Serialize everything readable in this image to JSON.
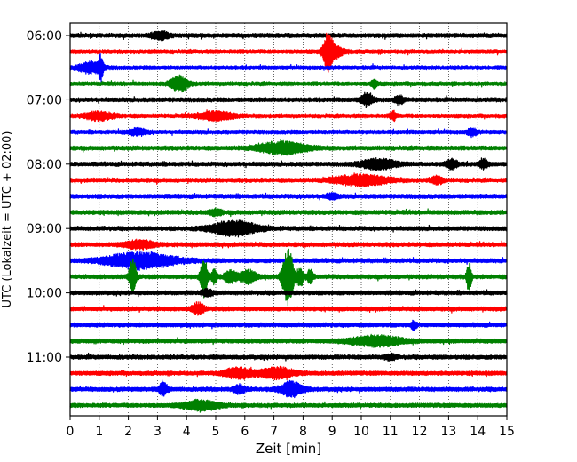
{
  "chart_data": {
    "type": "line",
    "title": "",
    "xlabel": "Zeit  [min]",
    "ylabel": "UTC (Lokalzeit = UTC + 02:00)",
    "xlim": [
      0,
      15
    ],
    "x_ticks": [
      0,
      1,
      2,
      3,
      4,
      5,
      6,
      7,
      8,
      9,
      10,
      11,
      12,
      13,
      14,
      15
    ],
    "y_tick_labels": [
      "06:00",
      "07:00",
      "08:00",
      "09:00",
      "10:00",
      "11:00"
    ],
    "grid": "vertical dotted",
    "legend": "none",
    "colors": [
      "#000000",
      "#ff0000",
      "#0000ff",
      "#008000"
    ],
    "traces": [
      {
        "start": "06:00",
        "color": "#000000",
        "events": [
          {
            "t": 3.1,
            "amp": 0.18,
            "dur": 0.3
          }
        ]
      },
      {
        "start": "06:15",
        "color": "#ff0000",
        "events": [
          {
            "t": 8.85,
            "amp": 0.9,
            "dur": 0.15
          },
          {
            "t": 9.1,
            "amp": 0.25,
            "dur": 0.3
          }
        ]
      },
      {
        "start": "06:30",
        "color": "#0000ff",
        "events": [
          {
            "t": 0.7,
            "amp": 0.25,
            "dur": 0.4
          },
          {
            "t": 1.05,
            "amp": 0.6,
            "dur": 0.08
          }
        ]
      },
      {
        "start": "06:45",
        "color": "#008000",
        "events": [
          {
            "t": 3.75,
            "amp": 0.35,
            "dur": 0.3
          },
          {
            "t": 10.45,
            "amp": 0.2,
            "dur": 0.1
          }
        ]
      },
      {
        "start": "07:00",
        "color": "#000000",
        "events": [
          {
            "t": 10.2,
            "amp": 0.3,
            "dur": 0.2
          },
          {
            "t": 11.3,
            "amp": 0.2,
            "dur": 0.15
          }
        ]
      },
      {
        "start": "07:15",
        "color": "#ff0000",
        "events": [
          {
            "t": 1.0,
            "amp": 0.18,
            "dur": 0.5
          },
          {
            "t": 5.0,
            "amp": 0.2,
            "dur": 0.6
          },
          {
            "t": 11.1,
            "amp": 0.22,
            "dur": 0.1
          }
        ]
      },
      {
        "start": "07:30",
        "color": "#0000ff",
        "events": [
          {
            "t": 2.3,
            "amp": 0.15,
            "dur": 0.3
          },
          {
            "t": 13.8,
            "amp": 0.18,
            "dur": 0.15
          }
        ]
      },
      {
        "start": "07:45",
        "color": "#008000",
        "events": [
          {
            "t": 7.3,
            "amp": 0.3,
            "dur": 0.8
          }
        ]
      },
      {
        "start": "08:00",
        "color": "#000000",
        "events": [
          {
            "t": 10.6,
            "amp": 0.25,
            "dur": 0.6
          },
          {
            "t": 13.1,
            "amp": 0.22,
            "dur": 0.2
          },
          {
            "t": 14.2,
            "amp": 0.2,
            "dur": 0.15
          }
        ]
      },
      {
        "start": "08:15",
        "color": "#ff0000",
        "events": [
          {
            "t": 10.0,
            "amp": 0.25,
            "dur": 0.9
          },
          {
            "t": 12.6,
            "amp": 0.18,
            "dur": 0.2
          }
        ]
      },
      {
        "start": "08:30",
        "color": "#0000ff",
        "events": [
          {
            "t": 9.0,
            "amp": 0.12,
            "dur": 0.2
          }
        ]
      },
      {
        "start": "08:45",
        "color": "#008000",
        "events": [
          {
            "t": 5.0,
            "amp": 0.15,
            "dur": 0.2
          }
        ]
      },
      {
        "start": "09:00",
        "color": "#000000",
        "events": [
          {
            "t": 5.6,
            "amp": 0.35,
            "dur": 0.8
          }
        ]
      },
      {
        "start": "09:15",
        "color": "#ff0000",
        "events": [
          {
            "t": 2.4,
            "amp": 0.2,
            "dur": 0.5
          }
        ]
      },
      {
        "start": "09:30",
        "color": "#0000ff",
        "events": [
          {
            "t": 2.4,
            "amp": 0.38,
            "dur": 1.2
          }
        ]
      },
      {
        "start": "09:45",
        "color": "#008000",
        "events": [
          {
            "t": 2.15,
            "amp": 0.9,
            "dur": 0.12
          },
          {
            "t": 4.6,
            "amp": 1.0,
            "dur": 0.12
          },
          {
            "t": 4.95,
            "amp": 0.4,
            "dur": 0.1
          },
          {
            "t": 5.5,
            "amp": 0.3,
            "dur": 0.2
          },
          {
            "t": 6.1,
            "amp": 0.3,
            "dur": 0.3
          },
          {
            "t": 7.4,
            "amp": 0.8,
            "dur": 0.15
          },
          {
            "t": 7.55,
            "amp": 1.0,
            "dur": 0.15
          },
          {
            "t": 7.9,
            "amp": 0.45,
            "dur": 0.12
          },
          {
            "t": 8.25,
            "amp": 0.35,
            "dur": 0.1
          },
          {
            "t": 13.7,
            "amp": 0.75,
            "dur": 0.08
          }
        ]
      },
      {
        "start": "10:00",
        "color": "#000000",
        "events": [
          {
            "t": 4.7,
            "amp": 0.15,
            "dur": 0.2
          }
        ]
      },
      {
        "start": "10:15",
        "color": "#ff0000",
        "events": [
          {
            "t": 4.4,
            "amp": 0.28,
            "dur": 0.2
          }
        ]
      },
      {
        "start": "10:30",
        "color": "#0000ff",
        "events": [
          {
            "t": 11.8,
            "amp": 0.2,
            "dur": 0.1
          }
        ]
      },
      {
        "start": "10:45",
        "color": "#008000",
        "events": [
          {
            "t": 10.5,
            "amp": 0.25,
            "dur": 0.9
          }
        ]
      },
      {
        "start": "11:00",
        "color": "#000000",
        "events": [
          {
            "t": 11.0,
            "amp": 0.12,
            "dur": 0.2
          }
        ]
      },
      {
        "start": "11:15",
        "color": "#ff0000",
        "events": [
          {
            "t": 5.8,
            "amp": 0.25,
            "dur": 0.5
          },
          {
            "t": 7.1,
            "amp": 0.25,
            "dur": 0.6
          }
        ]
      },
      {
        "start": "11:30",
        "color": "#0000ff",
        "events": [
          {
            "t": 3.2,
            "amp": 0.3,
            "dur": 0.15
          },
          {
            "t": 5.8,
            "amp": 0.2,
            "dur": 0.2
          },
          {
            "t": 7.6,
            "amp": 0.35,
            "dur": 0.4
          }
        ]
      },
      {
        "start": "11:45",
        "color": "#008000",
        "events": [
          {
            "t": 4.5,
            "amp": 0.22,
            "dur": 0.6
          }
        ]
      }
    ]
  }
}
